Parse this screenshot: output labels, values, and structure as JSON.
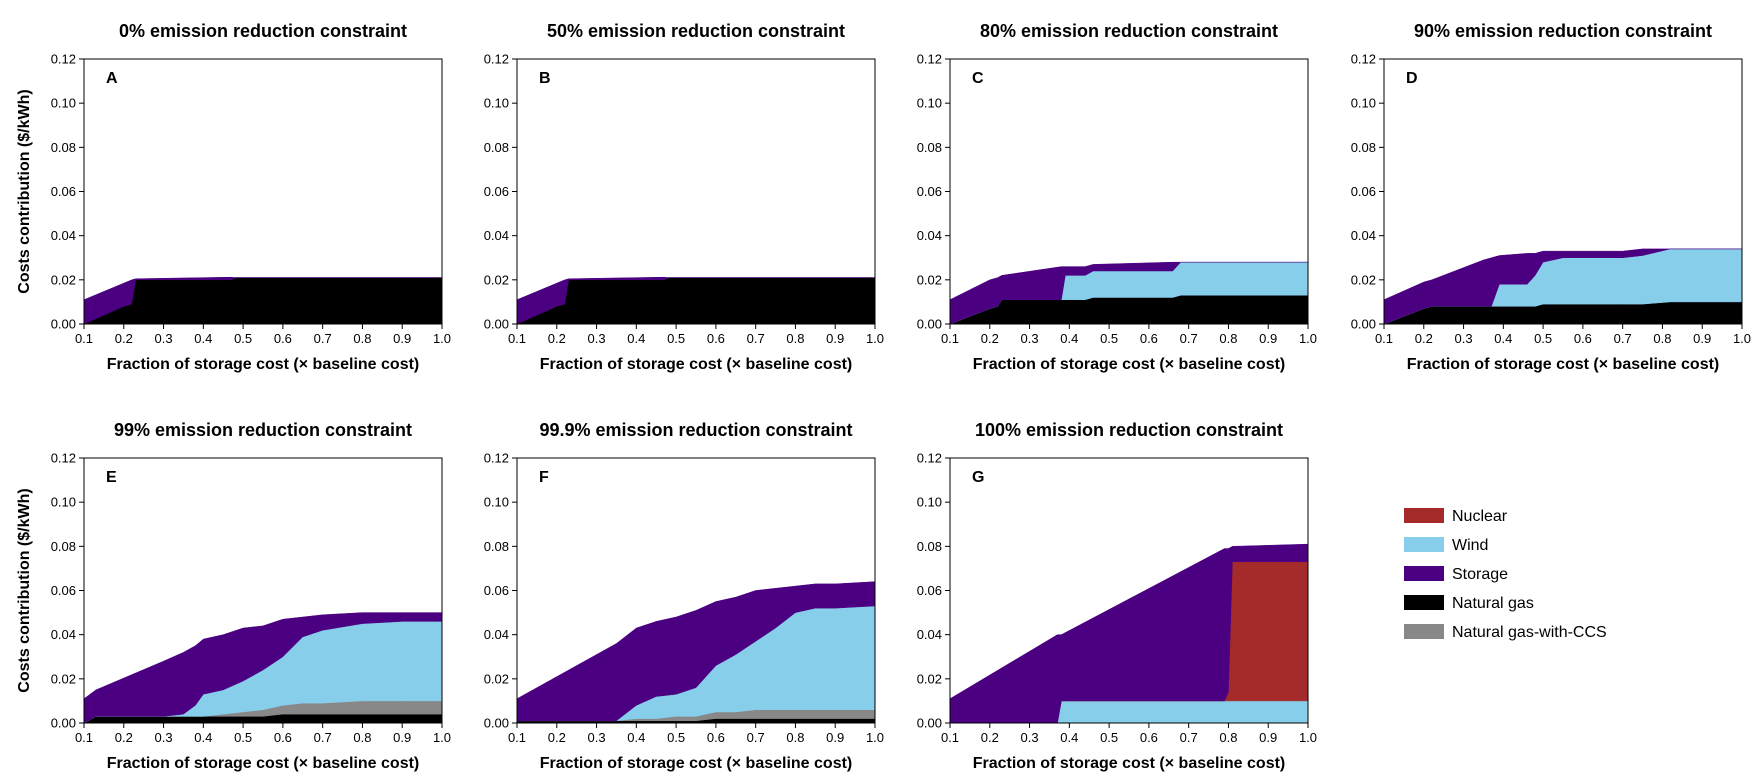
{
  "chart_data": {
    "type": "area",
    "stacked": true,
    "xlabel": "Fraction of storage cost (× baseline cost)",
    "ylabel": "Costs contribution ($/kWh)",
    "xlim": [
      0.1,
      1.0
    ],
    "ylim": [
      0,
      0.12
    ],
    "xticks": [
      "0.1",
      "0.2",
      "0.3",
      "0.4",
      "0.5",
      "0.6",
      "0.7",
      "0.8",
      "0.9",
      "1.0"
    ],
    "yticks": [
      "0.00",
      "0.02",
      "0.04",
      "0.06",
      "0.08",
      "0.10",
      "0.12"
    ],
    "legend_position": "right",
    "legend": [
      {
        "name": "Nuclear",
        "color": "#a52a2a"
      },
      {
        "name": "Wind",
        "color": "#87ceeb"
      },
      {
        "name": "Storage",
        "color": "#4b0082"
      },
      {
        "name": "Natural gas",
        "color": "#000000"
      },
      {
        "name": "Natural gas-with-CCS",
        "color": "#888888"
      }
    ],
    "panels": [
      {
        "letter": "A",
        "title": "0% emission reduction constraint",
        "x": [
          0.1,
          0.2,
          0.22,
          0.23,
          0.3,
          0.47,
          0.48,
          0.6,
          0.8,
          1.0
        ],
        "series": [
          {
            "name": "Natural gas",
            "color": "#000000",
            "values": [
              0.0,
              0.008,
              0.009,
              0.02,
              0.02,
              0.02,
              0.021,
              0.021,
              0.021,
              0.021
            ]
          },
          {
            "name": "Natural gas-with-CCS",
            "color": "#888888",
            "values": [
              0,
              0,
              0,
              0,
              0,
              0,
              0,
              0,
              0,
              0
            ]
          },
          {
            "name": "Wind",
            "color": "#87ceeb",
            "values": [
              0,
              0,
              0,
              0,
              0,
              0,
              0,
              0,
              0,
              0
            ]
          },
          {
            "name": "Nuclear",
            "color": "#a52a2a",
            "values": [
              0,
              0,
              0,
              0,
              0,
              0,
              0,
              0,
              0,
              0
            ]
          },
          {
            "name": "Storage",
            "color": "#4b0082",
            "values": [
              0.011,
              0.0105,
              0.011,
              0.0005,
              0.0007,
              0.0012,
              0.0,
              0.0,
              0.0,
              0.0
            ]
          }
        ]
      },
      {
        "letter": "B",
        "title": "50% emission reduction constraint",
        "x": [
          0.1,
          0.2,
          0.22,
          0.23,
          0.3,
          0.47,
          0.48,
          0.6,
          0.8,
          1.0
        ],
        "series": [
          {
            "name": "Natural gas",
            "color": "#000000",
            "values": [
              0.0,
              0.008,
              0.009,
              0.02,
              0.02,
              0.02,
              0.021,
              0.021,
              0.021,
              0.021
            ]
          },
          {
            "name": "Natural gas-with-CCS",
            "color": "#888888",
            "values": [
              0,
              0,
              0,
              0,
              0,
              0,
              0,
              0,
              0,
              0
            ]
          },
          {
            "name": "Wind",
            "color": "#87ceeb",
            "values": [
              0,
              0,
              0,
              0,
              0,
              0,
              0,
              0,
              0,
              0
            ]
          },
          {
            "name": "Nuclear",
            "color": "#a52a2a",
            "values": [
              0,
              0,
              0,
              0,
              0,
              0,
              0,
              0,
              0,
              0
            ]
          },
          {
            "name": "Storage",
            "color": "#4b0082",
            "values": [
              0.011,
              0.0105,
              0.011,
              0.0005,
              0.0007,
              0.0012,
              0.0,
              0.0,
              0.0,
              0.0
            ]
          }
        ]
      },
      {
        "letter": "C",
        "title": "80% emission reduction constraint",
        "x": [
          0.1,
          0.2,
          0.22,
          0.23,
          0.38,
          0.39,
          0.44,
          0.46,
          0.66,
          0.68,
          0.8,
          1.0
        ],
        "series": [
          {
            "name": "Natural gas",
            "color": "#000000",
            "values": [
              0.0,
              0.007,
              0.008,
              0.011,
              0.011,
              0.011,
              0.011,
              0.012,
              0.012,
              0.013,
              0.013,
              0.013
            ]
          },
          {
            "name": "Natural gas-with-CCS",
            "color": "#888888",
            "values": [
              0,
              0,
              0,
              0,
              0,
              0,
              0,
              0,
              0,
              0,
              0,
              0
            ]
          },
          {
            "name": "Wind",
            "color": "#87ceeb",
            "values": [
              0,
              0,
              0,
              0,
              0,
              0.011,
              0.011,
              0.012,
              0.012,
              0.015,
              0.015,
              0.015
            ]
          },
          {
            "name": "Nuclear",
            "color": "#a52a2a",
            "values": [
              0,
              0,
              0,
              0,
              0,
              0,
              0,
              0,
              0,
              0,
              0,
              0
            ]
          },
          {
            "name": "Storage",
            "color": "#4b0082",
            "values": [
              0.011,
              0.013,
              0.013,
              0.011,
              0.015,
              0.004,
              0.004,
              0.003,
              0.004,
              0.0,
              0.0,
              0.0
            ]
          }
        ]
      },
      {
        "letter": "D",
        "title": "90% emission reduction constraint",
        "x": [
          0.1,
          0.2,
          0.22,
          0.35,
          0.37,
          0.39,
          0.46,
          0.48,
          0.5,
          0.55,
          0.7,
          0.75,
          0.82,
          0.85,
          1.0
        ],
        "series": [
          {
            "name": "Natural gas",
            "color": "#000000",
            "values": [
              0.0,
              0.007,
              0.008,
              0.008,
              0.008,
              0.008,
              0.008,
              0.008,
              0.009,
              0.009,
              0.009,
              0.009,
              0.01,
              0.01,
              0.01
            ]
          },
          {
            "name": "Natural gas-with-CCS",
            "color": "#888888",
            "values": [
              0,
              0,
              0,
              0,
              0,
              0,
              0,
              0,
              0,
              0,
              0,
              0,
              0,
              0,
              0
            ]
          },
          {
            "name": "Wind",
            "color": "#87ceeb",
            "values": [
              0,
              0,
              0,
              0,
              0,
              0.01,
              0.01,
              0.014,
              0.019,
              0.021,
              0.021,
              0.022,
              0.024,
              0.024,
              0.024
            ]
          },
          {
            "name": "Nuclear",
            "color": "#a52a2a",
            "values": [
              0,
              0,
              0,
              0,
              0,
              0,
              0,
              0,
              0,
              0,
              0,
              0,
              0,
              0,
              0
            ]
          },
          {
            "name": "Storage",
            "color": "#4b0082",
            "values": [
              0.011,
              0.012,
              0.012,
              0.021,
              0.022,
              0.013,
              0.014,
              0.01,
              0.005,
              0.003,
              0.003,
              0.003,
              0.0,
              0.0,
              0.0
            ]
          }
        ]
      },
      {
        "letter": "E",
        "title": "99% emission reduction constraint",
        "x": [
          0.1,
          0.13,
          0.3,
          0.35,
          0.38,
          0.4,
          0.45,
          0.5,
          0.55,
          0.6,
          0.65,
          0.7,
          0.8,
          0.9,
          1.0
        ],
        "series": [
          {
            "name": "Natural gas",
            "color": "#000000",
            "values": [
              0.0,
              0.003,
              0.003,
              0.003,
              0.003,
              0.003,
              0.003,
              0.003,
              0.003,
              0.004,
              0.004,
              0.004,
              0.004,
              0.004,
              0.004
            ]
          },
          {
            "name": "Natural gas-with-CCS",
            "color": "#888888",
            "values": [
              0.0,
              0.0,
              0.0,
              0.0,
              0.0,
              0.0,
              0.001,
              0.002,
              0.003,
              0.004,
              0.005,
              0.005,
              0.006,
              0.006,
              0.006
            ]
          },
          {
            "name": "Wind",
            "color": "#87ceeb",
            "values": [
              0,
              0,
              0,
              0.001,
              0.005,
              0.01,
              0.011,
              0.014,
              0.018,
              0.022,
              0.03,
              0.033,
              0.035,
              0.036,
              0.036
            ]
          },
          {
            "name": "Nuclear",
            "color": "#a52a2a",
            "values": [
              0,
              0,
              0,
              0,
              0,
              0,
              0,
              0,
              0,
              0,
              0,
              0,
              0,
              0,
              0
            ]
          },
          {
            "name": "Storage",
            "color": "#4b0082",
            "values": [
              0.011,
              0.012,
              0.025,
              0.028,
              0.027,
              0.025,
              0.025,
              0.024,
              0.02,
              0.017,
              0.009,
              0.007,
              0.005,
              0.004,
              0.004
            ]
          }
        ]
      },
      {
        "letter": "F",
        "title": "99.9% emission reduction constraint",
        "x": [
          0.1,
          0.33,
          0.35,
          0.4,
          0.45,
          0.5,
          0.55,
          0.6,
          0.65,
          0.7,
          0.75,
          0.8,
          0.85,
          0.9,
          1.0
        ],
        "series": [
          {
            "name": "Natural gas",
            "color": "#000000",
            "values": [
              0.001,
              0.001,
              0.001,
              0.001,
              0.001,
              0.001,
              0.001,
              0.002,
              0.002,
              0.002,
              0.002,
              0.002,
              0.002,
              0.002,
              0.002
            ]
          },
          {
            "name": "Natural gas-with-CCS",
            "color": "#888888",
            "values": [
              0.0,
              0.0,
              0.0,
              0.001,
              0.001,
              0.002,
              0.002,
              0.003,
              0.003,
              0.004,
              0.004,
              0.004,
              0.004,
              0.004,
              0.004
            ]
          },
          {
            "name": "Wind",
            "color": "#87ceeb",
            "values": [
              0,
              0,
              0,
              0.006,
              0.01,
              0.01,
              0.013,
              0.021,
              0.026,
              0.031,
              0.037,
              0.044,
              0.046,
              0.046,
              0.047
            ]
          },
          {
            "name": "Nuclear",
            "color": "#a52a2a",
            "values": [
              0,
              0,
              0,
              0,
              0,
              0,
              0,
              0,
              0,
              0,
              0,
              0,
              0,
              0,
              0
            ]
          },
          {
            "name": "Storage",
            "color": "#4b0082",
            "values": [
              0.01,
              0.033,
              0.035,
              0.035,
              0.034,
              0.035,
              0.035,
              0.029,
              0.026,
              0.023,
              0.018,
              0.012,
              0.011,
              0.011,
              0.011
            ]
          }
        ]
      },
      {
        "letter": "G",
        "title": "100% emission reduction constraint",
        "x": [
          0.1,
          0.37,
          0.38,
          0.79,
          0.8,
          0.81,
          1.0
        ],
        "series": [
          {
            "name": "Natural gas",
            "color": "#000000",
            "values": [
              0,
              0,
              0,
              0,
              0,
              0,
              0
            ]
          },
          {
            "name": "Natural gas-with-CCS",
            "color": "#888888",
            "values": [
              0,
              0,
              0,
              0,
              0,
              0,
              0
            ]
          },
          {
            "name": "Wind",
            "color": "#87ceeb",
            "values": [
              0.0,
              0.0,
              0.01,
              0.01,
              0.01,
              0.01,
              0.01
            ]
          },
          {
            "name": "Nuclear",
            "color": "#a52a2a",
            "values": [
              0,
              0,
              0,
              0,
              0.004,
              0.063,
              0.063
            ]
          },
          {
            "name": "Storage",
            "color": "#4b0082",
            "values": [
              0.011,
              0.04,
              0.03,
              0.069,
              0.065,
              0.007,
              0.008
            ]
          }
        ]
      }
    ]
  }
}
